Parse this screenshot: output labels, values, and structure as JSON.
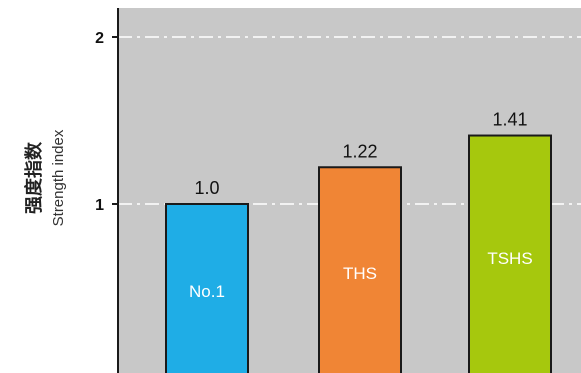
{
  "chart_data": {
    "type": "bar",
    "categories": [
      "No.1",
      "THS",
      "TSHS"
    ],
    "values": [
      1.0,
      1.22,
      1.41
    ],
    "value_labels": [
      "1.0",
      "1.22",
      "1.41"
    ],
    "ylabel_cn": "强度指数",
    "ylabel_en": "Strength index",
    "ylim": [
      0,
      2.2
    ],
    "yticks": [
      1,
      2
    ],
    "ytick_labels": [
      "1",
      "2"
    ],
    "grid": true,
    "colors": {
      "plot_bg": "#c8c8c8",
      "grid": "#ffffff",
      "axis": "#1a1a1a",
      "bars": [
        "#1fade6",
        "#f08535",
        "#a6c80d"
      ]
    }
  }
}
